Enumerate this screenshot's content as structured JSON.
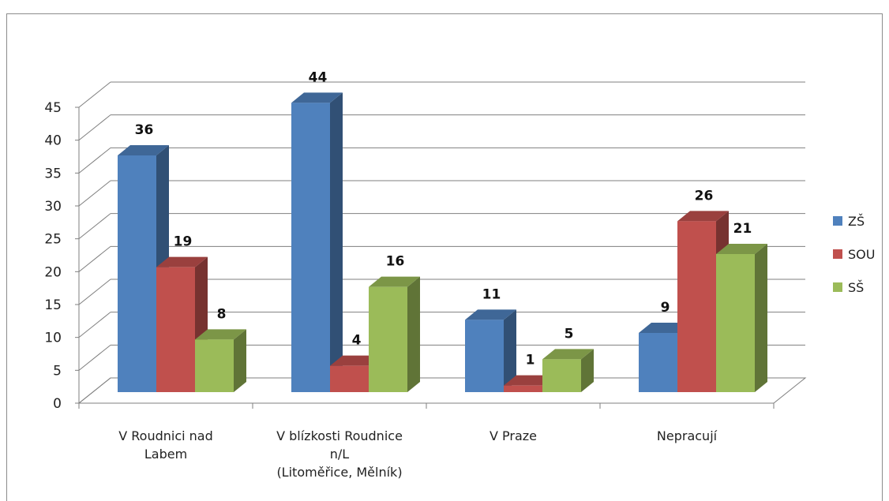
{
  "chart_data": {
    "type": "bar",
    "categories": [
      [
        "V Roudnici nad",
        "Labem"
      ],
      [
        "V blízkosti Roudnice",
        "n/L",
        "(Litoměřice, Mělník)"
      ],
      [
        "V Praze"
      ],
      [
        "Nepracují"
      ]
    ],
    "series": [
      {
        "name": "ZŠ",
        "values": [
          36,
          44,
          11,
          9
        ],
        "color": "#4f81bd"
      },
      {
        "name": "SOU",
        "values": [
          19,
          4,
          1,
          26
        ],
        "color": "#c0504d"
      },
      {
        "name": "SŠ",
        "values": [
          8,
          16,
          5,
          21
        ],
        "color": "#9bbb59"
      }
    ],
    "ylim": [
      0,
      45
    ],
    "yticks": [
      0,
      5,
      10,
      15,
      20,
      25,
      30,
      35,
      40,
      45
    ],
    "grid": true,
    "legend": "right",
    "style": "3d-column"
  }
}
